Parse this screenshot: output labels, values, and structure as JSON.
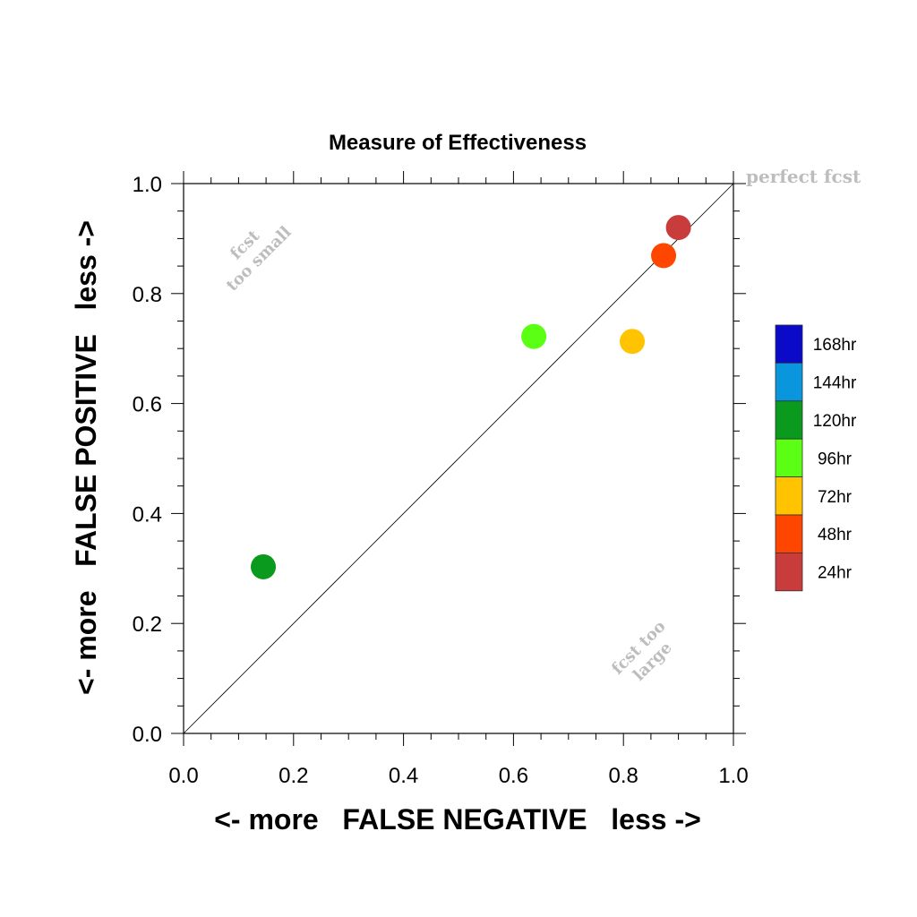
{
  "chart_data": {
    "type": "scatter",
    "title": "Measure of Effectiveness",
    "xlabel": "<- more   FALSE NEGATIVE   less ->",
    "ylabel": "<- more   FALSE POSITIVE   less ->",
    "xlim": [
      0.0,
      1.0
    ],
    "ylim": [
      0.0,
      1.0
    ],
    "xticks": [
      "0.0",
      "0.2",
      "0.4",
      "0.6",
      "0.8",
      "1.0"
    ],
    "yticks": [
      "0.0",
      "0.2",
      "0.4",
      "0.6",
      "0.8",
      "1.0"
    ],
    "grid": false,
    "reference_line": {
      "from": [
        0,
        0
      ],
      "to": [
        1,
        1
      ]
    },
    "annotations": {
      "perfect": "perfect fcst",
      "small_line1": "fcst",
      "small_line2": "too small",
      "large_line1": "fcst too",
      "large_line2": "large"
    },
    "legend": {
      "placement": "right",
      "entries": [
        {
          "label": "168hr",
          "color": "#0a0ac8"
        },
        {
          "label": "144hr",
          "color": "#0a96dc"
        },
        {
          "label": "120hr",
          "color": "#0a9a1e"
        },
        {
          "label": "96hr",
          "color": "#5aff14"
        },
        {
          "label": "72hr",
          "color": "#ffc300"
        },
        {
          "label": "48hr",
          "color": "#ff4600"
        },
        {
          "label": "24hr",
          "color": "#c83c3c"
        }
      ]
    },
    "points": [
      {
        "label": "24hr",
        "x": 0.9,
        "y": 0.92,
        "color": "#c83c3c"
      },
      {
        "label": "48hr",
        "x": 0.873,
        "y": 0.869,
        "color": "#ff4600"
      },
      {
        "label": "72hr",
        "x": 0.816,
        "y": 0.713,
        "color": "#ffc300"
      },
      {
        "label": "96hr",
        "x": 0.637,
        "y": 0.722,
        "color": "#5aff14"
      },
      {
        "label": "120hr",
        "x": 0.145,
        "y": 0.303,
        "color": "#0a9a1e"
      }
    ]
  }
}
